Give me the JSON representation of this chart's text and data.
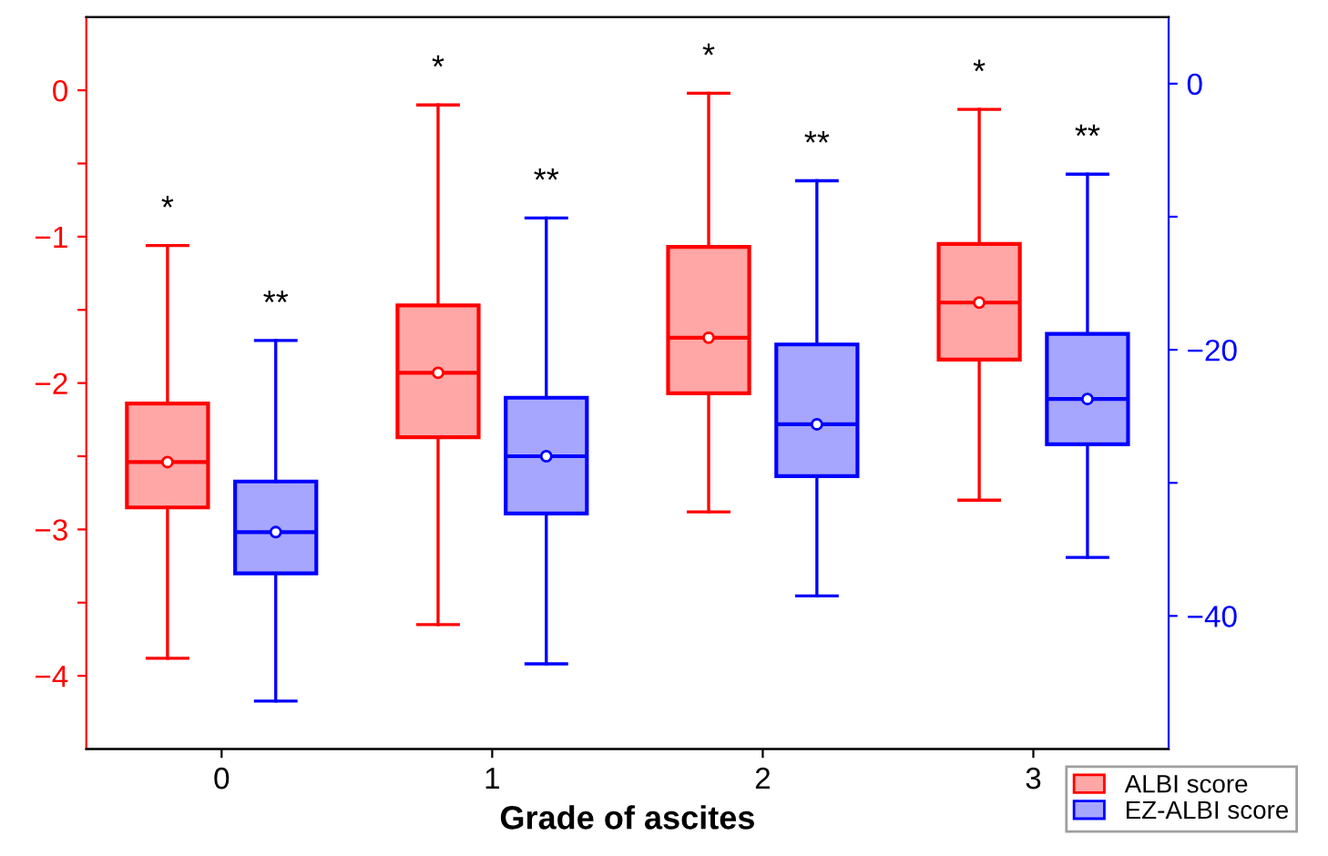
{
  "chart_data": {
    "type": "box",
    "xlabel": "Grade of ascites",
    "categories": [
      "0",
      "1",
      "2",
      "3"
    ],
    "series": [
      {
        "name": "ALBI score",
        "color": "#ff0000",
        "boxes": [
          {
            "low": -3.88,
            "q1": -2.85,
            "median": -2.54,
            "q3": -2.14,
            "high": -1.06,
            "mean": -2.54
          },
          {
            "low": -3.65,
            "q1": -2.37,
            "median": -1.93,
            "q3": -1.47,
            "high": -0.1,
            "mean": -1.93
          },
          {
            "low": -2.88,
            "q1": -2.07,
            "median": -1.69,
            "q3": -1.07,
            "high": -0.02,
            "mean": -1.69
          },
          {
            "low": -2.8,
            "q1": -1.84,
            "median": -1.45,
            "q3": -1.05,
            "high": -0.13,
            "mean": -1.45
          }
        ]
      },
      {
        "name": "EZ-ALBI score",
        "color": "#0000ff",
        "axis": "y2",
        "boxes": [
          {
            "low": -46.4,
            "q1": -36.8,
            "median": -33.7,
            "q3": -29.9,
            "high": -19.3,
            "mean": -33.7
          },
          {
            "low": -43.6,
            "q1": -32.3,
            "median": -28.0,
            "q3": -23.6,
            "high": -10.1,
            "mean": -28.0
          },
          {
            "low": -38.5,
            "q1": -29.5,
            "median": -25.6,
            "q3": -19.6,
            "high": -7.3,
            "mean": -25.6
          },
          {
            "low": -35.6,
            "q1": -27.1,
            "median": -23.7,
            "q3": -18.8,
            "high": -6.8,
            "mean": -23.7
          }
        ]
      }
    ],
    "ylim": [
      -4.5,
      0.5
    ],
    "yticks": [
      -4,
      {
        "value": -3.5,
        "label": null
      },
      -3,
      {
        "value": -2.5,
        "label": null
      },
      -2,
      {
        "value": -1.5,
        "label": null
      },
      -1,
      {
        "value": -0.5,
        "label": null
      },
      0
    ],
    "y2lim": [
      -50,
      5
    ],
    "y2ticks": [
      {
        "value": -40,
        "label": "−40"
      },
      {
        "value": -30,
        "label": null
      },
      {
        "value": -20,
        "label": "−20"
      },
      {
        "value": -10,
        "label": null
      },
      0
    ],
    "annotations": [
      "*",
      "**",
      "*",
      "**",
      "*",
      "**",
      "*",
      "**"
    ],
    "legend": "bottom right",
    "grid": false
  }
}
